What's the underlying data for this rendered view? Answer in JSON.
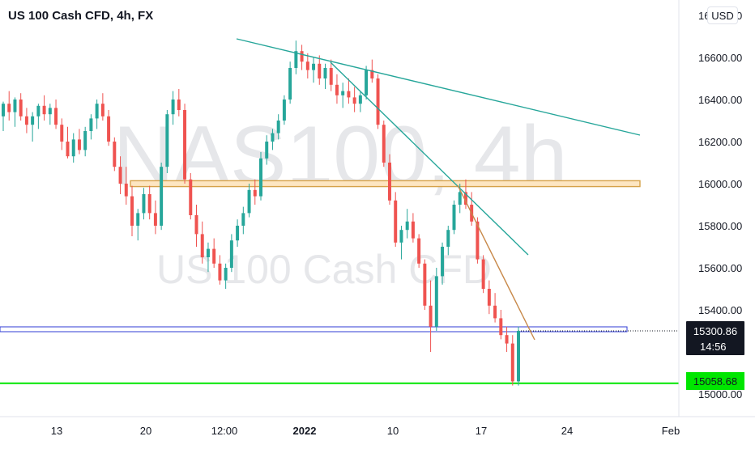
{
  "header": {
    "symbol_title": "US 100 Cash CFD, 4h, FX",
    "currency_button": "USD"
  },
  "watermark": {
    "main": "NAS100, 4h",
    "sub": "US 100 Cash CFD"
  },
  "colors": {
    "up": "#26a69a",
    "down": "#ef5350",
    "up_wick": "#26a69a",
    "down_wick": "#ef5350",
    "trendline": "#26a69a",
    "short_trendline": "#c8894a",
    "resistance_zone": "#d6a24a",
    "support_box": "#2f3bd4",
    "support_line": "#00e600",
    "axis_text": "#131722",
    "watermark": "#e6e7ea"
  },
  "chart_data": {
    "type": "candlestick",
    "title": "US 100 Cash CFD, 4h, FX",
    "xlabel": "",
    "ylabel": "",
    "ylim": [
      14880,
      16800
    ],
    "x_ticks": [
      "13",
      "20",
      "12:00",
      "2022",
      "10",
      "17",
      "24",
      "Feb"
    ],
    "y_ticks": [
      "16800.00",
      "16600.00",
      "16400.00",
      "16200.00",
      "16000.00",
      "15800.00",
      "15600.00",
      "15400.00",
      "15000.00"
    ],
    "last_price": {
      "value": 15300.86,
      "label": "15300.86",
      "countdown": "14:56"
    },
    "support_price": {
      "value": 15058.68,
      "label": "15058.68"
    },
    "resistance_zone": [
      15990,
      16010
    ],
    "support_zone": [
      15310,
      15330
    ],
    "series": {
      "name": "US 100 Cash CFD",
      "candles": [
        [
          16320,
          16390,
          16250,
          16380
        ],
        [
          16380,
          16440,
          16300,
          16340
        ],
        [
          16340,
          16410,
          16270,
          16400
        ],
        [
          16400,
          16430,
          16300,
          16320
        ],
        [
          16320,
          16360,
          16240,
          16280
        ],
        [
          16280,
          16340,
          16200,
          16320
        ],
        [
          16320,
          16380,
          16260,
          16370
        ],
        [
          16370,
          16420,
          16300,
          16330
        ],
        [
          16330,
          16380,
          16280,
          16360
        ],
        [
          16360,
          16400,
          16260,
          16280
        ],
        [
          16280,
          16310,
          16160,
          16200
        ],
        [
          16200,
          16270,
          16120,
          16130
        ],
        [
          16130,
          16240,
          16100,
          16210
        ],
        [
          16210,
          16260,
          16140,
          16160
        ],
        [
          16160,
          16270,
          16130,
          16250
        ],
        [
          16250,
          16330,
          16210,
          16310
        ],
        [
          16310,
          16400,
          16260,
          16380
        ],
        [
          16380,
          16430,
          16300,
          16320
        ],
        [
          16320,
          16350,
          16180,
          16200
        ],
        [
          16200,
          16220,
          16060,
          16080
        ],
        [
          16080,
          16130,
          15950,
          16000
        ],
        [
          16000,
          16080,
          15900,
          15940
        ],
        [
          15940,
          15990,
          15750,
          15800
        ],
        [
          15800,
          15880,
          15730,
          15860
        ],
        [
          15860,
          15980,
          15830,
          15950
        ],
        [
          15950,
          15990,
          15830,
          15860
        ],
        [
          15860,
          15920,
          15760,
          15800
        ],
        [
          15800,
          16100,
          15780,
          16080
        ],
        [
          16080,
          16350,
          16050,
          16330
        ],
        [
          16330,
          16440,
          16280,
          16400
        ],
        [
          16400,
          16450,
          16320,
          16350
        ],
        [
          16350,
          16380,
          16000,
          16020
        ],
        [
          16020,
          16050,
          15830,
          15850
        ],
        [
          15850,
          15900,
          15700,
          15760
        ],
        [
          15760,
          15820,
          15620,
          15650
        ],
        [
          15650,
          15720,
          15580,
          15690
        ],
        [
          15690,
          15740,
          15600,
          15620
        ],
        [
          15620,
          15660,
          15520,
          15540
        ],
        [
          15540,
          15620,
          15500,
          15600
        ],
        [
          15600,
          15760,
          15580,
          15730
        ],
        [
          15730,
          15830,
          15700,
          15800
        ],
        [
          15800,
          15890,
          15760,
          15860
        ],
        [
          15860,
          16000,
          15840,
          15970
        ],
        [
          15970,
          16020,
          15900,
          15940
        ],
        [
          15940,
          16150,
          15920,
          16120
        ],
        [
          16120,
          16230,
          16090,
          16200
        ],
        [
          16200,
          16260,
          16160,
          16240
        ],
        [
          16240,
          16330,
          16210,
          16300
        ],
        [
          16300,
          16420,
          16280,
          16400
        ],
        [
          16400,
          16580,
          16380,
          16550
        ],
        [
          16550,
          16680,
          16520,
          16630
        ],
        [
          16630,
          16660,
          16540,
          16580
        ],
        [
          16580,
          16620,
          16500,
          16540
        ],
        [
          16540,
          16600,
          16480,
          16570
        ],
        [
          16570,
          16610,
          16470,
          16500
        ],
        [
          16500,
          16570,
          16450,
          16550
        ],
        [
          16550,
          16590,
          16440,
          16470
        ],
        [
          16470,
          16520,
          16380,
          16420
        ],
        [
          16420,
          16480,
          16360,
          16440
        ],
        [
          16440,
          16500,
          16380,
          16410
        ],
        [
          16410,
          16460,
          16340,
          16380
        ],
        [
          16380,
          16440,
          16340,
          16420
        ],
        [
          16420,
          16560,
          16400,
          16540
        ],
        [
          16540,
          16590,
          16480,
          16500
        ],
        [
          16500,
          16520,
          16260,
          16280
        ],
        [
          16280,
          16300,
          16080,
          16100
        ],
        [
          16100,
          16140,
          15900,
          15920
        ],
        [
          15920,
          15960,
          15700,
          15720
        ],
        [
          15720,
          15800,
          15640,
          15780
        ],
        [
          15780,
          15880,
          15740,
          15820
        ],
        [
          15820,
          15860,
          15720,
          15740
        ],
        [
          15740,
          15760,
          15600,
          15620
        ],
        [
          15620,
          15640,
          15400,
          15420
        ],
        [
          15420,
          15540,
          15200,
          15320
        ],
        [
          15320,
          15600,
          15300,
          15560
        ],
        [
          15560,
          15720,
          15520,
          15700
        ],
        [
          15700,
          15800,
          15660,
          15780
        ],
        [
          15780,
          15920,
          15760,
          15900
        ],
        [
          15900,
          16000,
          15860,
          15960
        ],
        [
          15960,
          16020,
          15880,
          15900
        ],
        [
          15900,
          15960,
          15800,
          15820
        ],
        [
          15820,
          15840,
          15620,
          15640
        ],
        [
          15640,
          15660,
          15480,
          15500
        ],
        [
          15500,
          15540,
          15380,
          15420
        ],
        [
          15420,
          15480,
          15340,
          15360
        ],
        [
          15360,
          15400,
          15260,
          15280
        ],
        [
          15280,
          15320,
          15200,
          15240
        ],
        [
          15240,
          15280,
          15040,
          15060
        ],
        [
          15060,
          15320,
          15040,
          15300
        ]
      ]
    },
    "annotations": {
      "trendlines": [
        {
          "from": [
            "16:00",
            16680
          ],
          "to": [
            "24",
            16220
          ],
          "role": "main"
        },
        {
          "from": [
            "12:00",
            16570
          ],
          "to": [
            "17+",
            15660
          ],
          "role": "steep"
        },
        {
          "from": [
            "17",
            16000
          ],
          "to": [
            "17+",
            15300
          ],
          "role": "short"
        }
      ]
    }
  }
}
